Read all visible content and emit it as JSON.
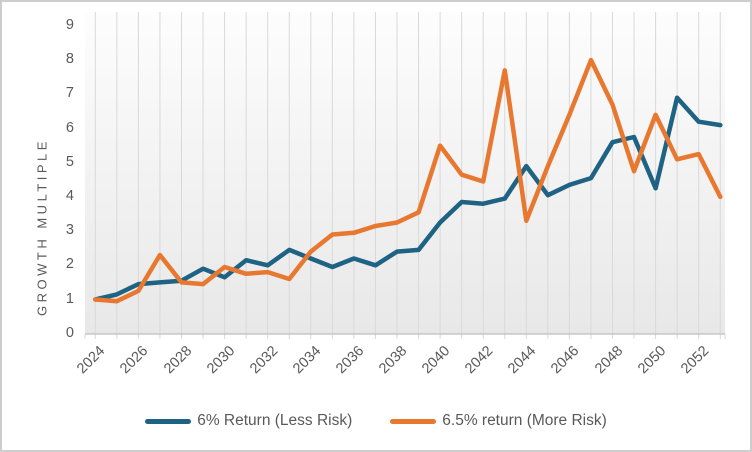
{
  "figure": {
    "background": "#ffffff",
    "border_color": "#cdcdcd"
  },
  "colors": {
    "text": "#595959",
    "gridline": "#d9d9d9",
    "axis_line": "#bfbfbf",
    "plot_bg_top": "#fdfdfd",
    "plot_bg_bottom": "#e8e8e8",
    "series_blue": "#1e6284",
    "series_orange": "#e8782f"
  },
  "chart_data": {
    "type": "line",
    "title": "",
    "xlabel": "",
    "ylabel": "GROWTH MULTIPLE",
    "grid": "vertical",
    "legend_position": "bottom",
    "ylim": [
      0,
      9.4
    ],
    "y_ticks": [
      0,
      1,
      2,
      3,
      4,
      5,
      6,
      7,
      8,
      9
    ],
    "x": [
      2024,
      2025,
      2026,
      2027,
      2028,
      2029,
      2030,
      2031,
      2032,
      2033,
      2034,
      2035,
      2036,
      2037,
      2038,
      2039,
      2040,
      2041,
      2042,
      2043,
      2044,
      2045,
      2046,
      2047,
      2048,
      2049,
      2050,
      2051,
      2052,
      2053
    ],
    "x_tick_labels": [
      "2024",
      "2026",
      "2028",
      "2030",
      "2032",
      "2034",
      "2036",
      "2038",
      "2040",
      "2042",
      "2044",
      "2046",
      "2048",
      "2050",
      "2052"
    ],
    "series": [
      {
        "name": "6% Return (Less Risk)",
        "color": "#1e6284",
        "values": [
          1.0,
          1.15,
          1.45,
          1.5,
          1.55,
          1.9,
          1.65,
          2.15,
          2.0,
          2.45,
          2.2,
          1.95,
          2.2,
          2.0,
          2.4,
          2.45,
          3.25,
          3.85,
          3.8,
          3.95,
          4.9,
          4.05,
          4.35,
          4.55,
          5.6,
          5.75,
          4.25,
          6.9,
          6.2,
          6.1
        ]
      },
      {
        "name": "6.5% return (More Risk)",
        "color": "#e8782f",
        "values": [
          1.0,
          0.95,
          1.25,
          2.3,
          1.5,
          1.45,
          1.95,
          1.75,
          1.8,
          1.6,
          2.4,
          2.9,
          2.95,
          3.15,
          3.25,
          3.55,
          5.5,
          4.65,
          4.45,
          7.7,
          3.3,
          4.9,
          6.4,
          8.0,
          6.7,
          4.75,
          6.4,
          5.1,
          5.25,
          4.0
        ]
      }
    ]
  }
}
